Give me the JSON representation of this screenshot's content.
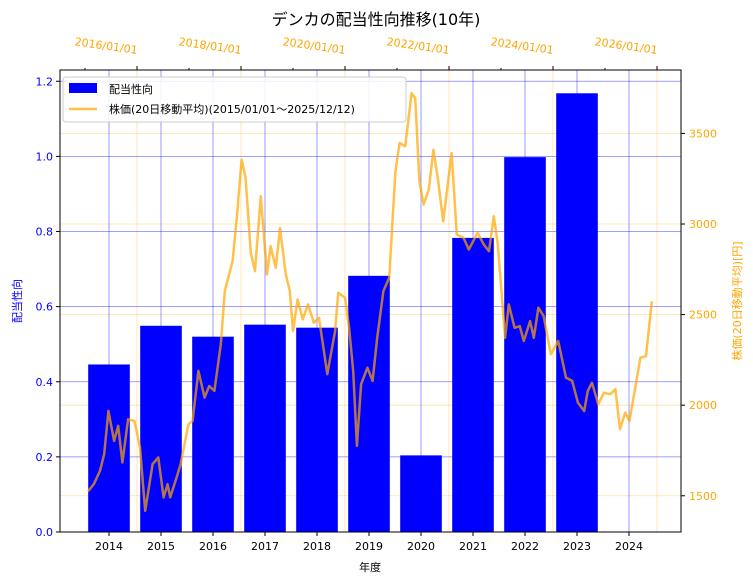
{
  "chart_data": {
    "type": "bar+line",
    "title": "デンカの配当性向推移(10年)",
    "xlabel": "年度",
    "ylabel_left": "配当性向",
    "ylabel_right": "株価(20日移動平均)[円]",
    "categories": [
      "2014",
      "2015",
      "2016",
      "2017",
      "2018",
      "2019",
      "2020",
      "2021",
      "2022",
      "2023",
      "2024"
    ],
    "bar_series": {
      "name": "配当性向",
      "color": "#0000ff",
      "values": [
        0.446,
        0.549,
        0.52,
        0.552,
        0.544,
        0.682,
        0.204,
        0.783,
        0.998,
        1.168,
        null
      ]
    },
    "left_ylim": [
      0,
      1.23
    ],
    "left_ticks": [
      "0.0",
      "0.2",
      "0.4",
      "0.6",
      "0.8",
      "1.0",
      "1.2"
    ],
    "right_ylim": [
      1300,
      3850
    ],
    "right_ticks": [
      "1500",
      "2000",
      "2500",
      "3000",
      "3500"
    ],
    "top_xticks": [
      "2016/01/01",
      "2018/01/01",
      "2020/01/01",
      "2022/01/01",
      "2024/01/01",
      "2026/01/01"
    ],
    "line_series": {
      "name": "株価(20日移動平均)(2015/01/01～2025/12/12)",
      "color": "#ffa500",
      "points": [
        [
          "2015-01-22",
          1524
        ],
        [
          "2015-03-02",
          1564
        ],
        [
          "2015-04-15",
          1638
        ],
        [
          "2015-05-14",
          1730
        ],
        [
          "2015-06-13",
          1968
        ],
        [
          "2015-07-23",
          1803
        ],
        [
          "2015-08-21",
          1886
        ],
        [
          "2015-09-20",
          1684
        ],
        [
          "2015-10-30",
          1922
        ],
        [
          "2015-12-13",
          1913
        ],
        [
          "2016-01-22",
          1766
        ],
        [
          "2016-02-28",
          1417
        ],
        [
          "2016-04-19",
          1675
        ],
        [
          "2016-05-29",
          1711
        ],
        [
          "2016-07-05",
          1491
        ],
        [
          "2016-08-03",
          1564
        ],
        [
          "2016-08-21",
          1491
        ],
        [
          "2016-10-05",
          1601
        ],
        [
          "2016-11-03",
          1675
        ],
        [
          "2016-12-27",
          1895
        ],
        [
          "2017-01-26",
          1913
        ],
        [
          "2017-03-06",
          2189
        ],
        [
          "2017-04-19",
          2042
        ],
        [
          "2017-05-21",
          2106
        ],
        [
          "2017-06-27",
          2079
        ],
        [
          "2017-08-11",
          2336
        ],
        [
          "2017-09-09",
          2630
        ],
        [
          "2017-11-03",
          2795
        ],
        [
          "2017-12-02",
          3034
        ],
        [
          "2018-01-05",
          3355
        ],
        [
          "2018-02-03",
          3254
        ],
        [
          "2018-03-09",
          2841
        ],
        [
          "2018-04-08",
          2740
        ],
        [
          "2018-05-18",
          3153
        ],
        [
          "2018-07-01",
          2722
        ],
        [
          "2018-07-26",
          2878
        ],
        [
          "2018-09-02",
          2758
        ],
        [
          "2018-10-01",
          2978
        ],
        [
          "2018-11-11",
          2722
        ],
        [
          "2018-12-09",
          2630
        ],
        [
          "2019-01-01",
          2409
        ],
        [
          "2019-02-03",
          2584
        ],
        [
          "2019-03-09",
          2474
        ],
        [
          "2019-04-15",
          2556
        ],
        [
          "2019-05-25",
          2455
        ],
        [
          "2019-07-01",
          2482
        ],
        [
          "2019-08-29",
          2171
        ],
        [
          "2019-10-23",
          2409
        ],
        [
          "2019-11-14",
          2620
        ],
        [
          "2020-01-01",
          2593
        ],
        [
          "2020-01-30",
          2427
        ],
        [
          "2020-02-28",
          2189
        ],
        [
          "2020-03-24",
          1776
        ],
        [
          "2020-04-23",
          2115
        ],
        [
          "2020-06-06",
          2207
        ],
        [
          "2020-07-12",
          2134
        ],
        [
          "2020-08-14",
          2372
        ],
        [
          "2020-09-27",
          2630
        ],
        [
          "2020-11-07",
          2703
        ],
        [
          "2020-12-20",
          3291
        ],
        [
          "2021-01-19",
          3447
        ],
        [
          "2021-02-28",
          3429
        ],
        [
          "2021-04-12",
          3722
        ],
        [
          "2021-05-07",
          3695
        ],
        [
          "2021-06-06",
          3236
        ],
        [
          "2021-07-05",
          3107
        ],
        [
          "2021-08-11",
          3190
        ],
        [
          "2021-09-13",
          3410
        ],
        [
          "2021-10-15",
          3245
        ],
        [
          "2021-11-21",
          3015
        ],
        [
          "2022-01-19",
          3392
        ],
        [
          "2022-02-25",
          2942
        ],
        [
          "2022-04-12",
          2923
        ],
        [
          "2022-05-18",
          2859
        ],
        [
          "2022-07-19",
          2951
        ],
        [
          "2022-09-02",
          2887
        ],
        [
          "2022-10-08",
          2850
        ],
        [
          "2022-11-11",
          3043
        ],
        [
          "2022-12-09",
          2887
        ],
        [
          "2023-01-30",
          2372
        ],
        [
          "2023-02-25",
          2556
        ],
        [
          "2023-04-05",
          2427
        ],
        [
          "2023-05-11",
          2436
        ],
        [
          "2023-06-09",
          2354
        ],
        [
          "2023-07-23",
          2464
        ],
        [
          "2023-08-18",
          2372
        ],
        [
          "2023-09-20",
          2538
        ],
        [
          "2023-10-26",
          2492
        ],
        [
          "2023-12-17",
          2281
        ],
        [
          "2024-02-07",
          2354
        ],
        [
          "2024-04-01",
          2152
        ],
        [
          "2024-05-14",
          2134
        ],
        [
          "2024-06-24",
          2014
        ],
        [
          "2024-08-07",
          1968
        ],
        [
          "2024-09-02",
          2079
        ],
        [
          "2024-10-01",
          2124
        ],
        [
          "2024-11-14",
          2005
        ],
        [
          "2024-12-24",
          2069
        ],
        [
          "2025-02-07",
          2060
        ],
        [
          "2025-03-13",
          2088
        ],
        [
          "2025-04-15",
          1868
        ],
        [
          "2025-05-21",
          1959
        ],
        [
          "2025-06-20",
          1913
        ],
        [
          "2025-07-23",
          2060
        ],
        [
          "2025-09-06",
          2262
        ],
        [
          "2025-10-15",
          2271
        ],
        [
          "2025-11-25",
          2574
        ]
      ]
    },
    "grid": true,
    "legend": "upper-left"
  }
}
